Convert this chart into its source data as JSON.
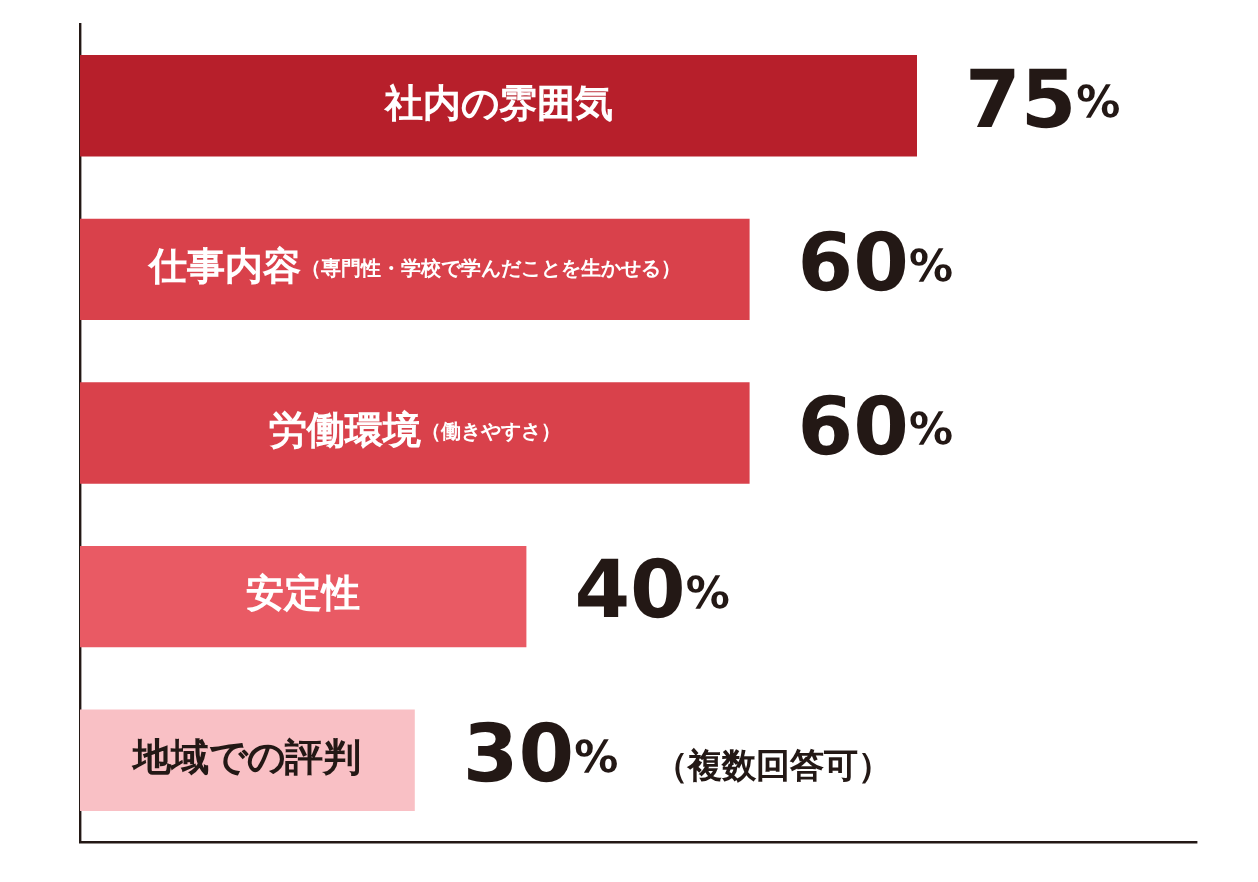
{
  "chart_data": {
    "type": "bar",
    "orientation": "horizontal",
    "categories": [
      "社内の雰囲気",
      "仕事内容（専門性・学校で学んだことを生かせる）",
      "労働環境（働きやすさ）",
      "安定性",
      "地域での評判"
    ],
    "values": [
      75,
      60,
      60,
      40,
      30
    ],
    "colors": [
      "#b71f2b",
      "#d9414b",
      "#d9414b",
      "#e95a64",
      "#f9c0c5"
    ],
    "value_labels": [
      "75%",
      "60%",
      "60%",
      "40%",
      "30%"
    ],
    "xlim": [
      0,
      100
    ],
    "legend": false,
    "annotations": [
      "（複数回答可）"
    ]
  }
}
